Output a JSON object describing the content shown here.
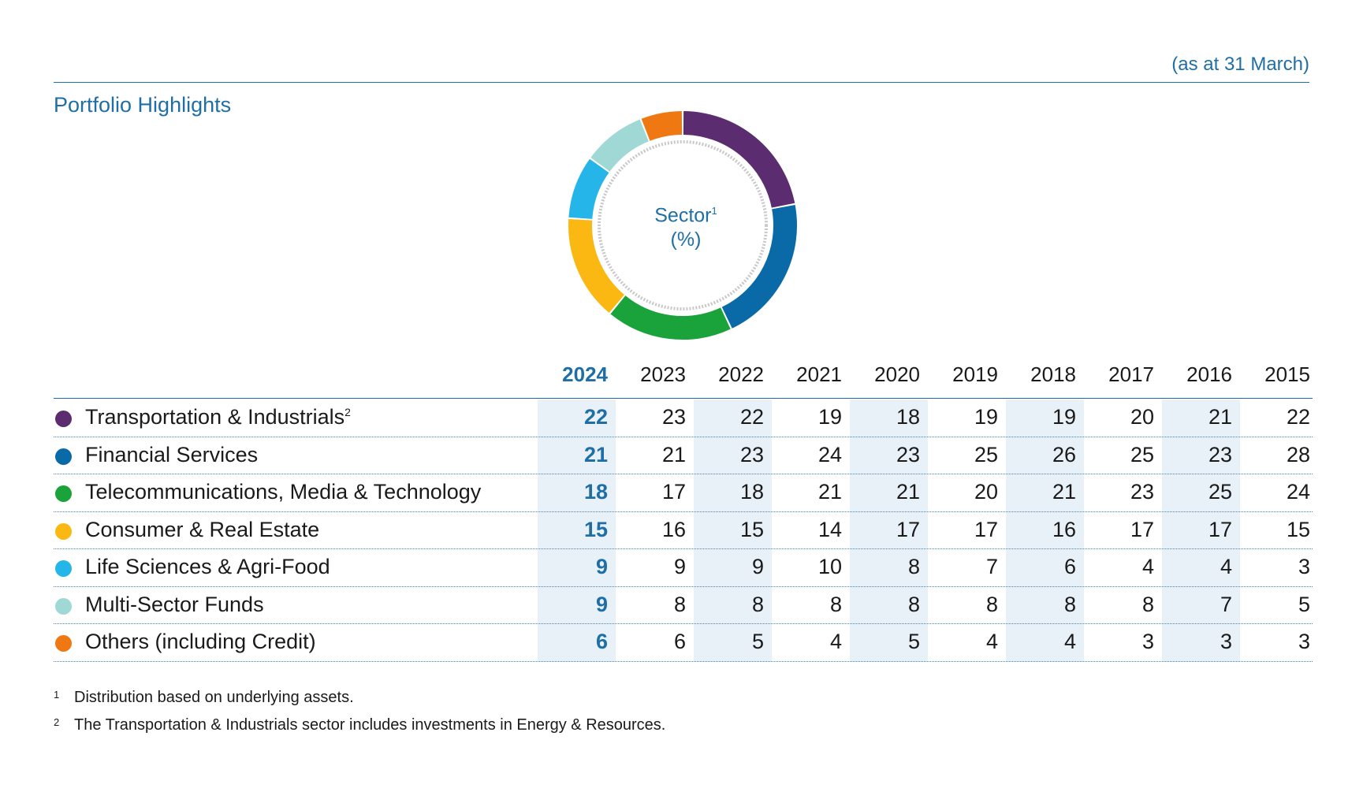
{
  "header": {
    "as_at": "(as at 31 March)",
    "title": "Portfolio Highlights"
  },
  "chart_center": {
    "label": "Sector",
    "label_sup": "1",
    "unit": "(%)"
  },
  "colors": {
    "accent": "#1f6fa6",
    "highlight_column": "#e9f1f8",
    "sectors": [
      "#5b2c6f",
      "#0a6aa8",
      "#1aa33a",
      "#fbb812",
      "#25b5e8",
      "#9fd8d5",
      "#ef7813"
    ]
  },
  "chart_data": {
    "type": "table",
    "title": "Portfolio Highlights",
    "columns": [
      "2024",
      "2023",
      "2022",
      "2021",
      "2020",
      "2019",
      "2018",
      "2017",
      "2016",
      "2015"
    ],
    "rows": [
      {
        "label": "Transportation & Industrials",
        "sup": "2",
        "values": [
          22,
          23,
          22,
          19,
          18,
          19,
          19,
          20,
          21,
          22
        ]
      },
      {
        "label": "Financial Services",
        "sup": "",
        "values": [
          21,
          21,
          23,
          24,
          23,
          25,
          26,
          25,
          23,
          28
        ]
      },
      {
        "label": "Telecommunications, Media & Technology",
        "sup": "",
        "values": [
          18,
          17,
          18,
          21,
          21,
          20,
          21,
          23,
          25,
          24
        ]
      },
      {
        "label": "Consumer & Real Estate",
        "sup": "",
        "values": [
          15,
          16,
          15,
          14,
          17,
          17,
          16,
          17,
          17,
          15
        ]
      },
      {
        "label": "Life Sciences & Agri-Food",
        "sup": "",
        "values": [
          9,
          9,
          9,
          10,
          8,
          7,
          6,
          4,
          4,
          3
        ]
      },
      {
        "label": "Multi-Sector Funds",
        "sup": "",
        "values": [
          9,
          8,
          8,
          8,
          8,
          8,
          8,
          8,
          7,
          5
        ]
      },
      {
        "label": "Others (including Credit)",
        "sup": "",
        "values": [
          6,
          6,
          5,
          4,
          5,
          4,
          4,
          3,
          3,
          3
        ]
      }
    ],
    "donut": {
      "type": "pie",
      "categories": [
        "Transportation & Industrials",
        "Financial Services",
        "Telecommunications, Media & Technology",
        "Consumer & Real Estate",
        "Life Sciences & Agri-Food",
        "Multi-Sector Funds",
        "Others (including Credit)"
      ],
      "values": [
        22,
        21,
        18,
        15,
        9,
        9,
        6
      ]
    }
  },
  "footnotes": [
    {
      "num": "1",
      "text": "Distribution based on underlying assets."
    },
    {
      "num": "2",
      "text": "The Transportation & Industrials sector includes investments in Energy & Resources."
    }
  ]
}
